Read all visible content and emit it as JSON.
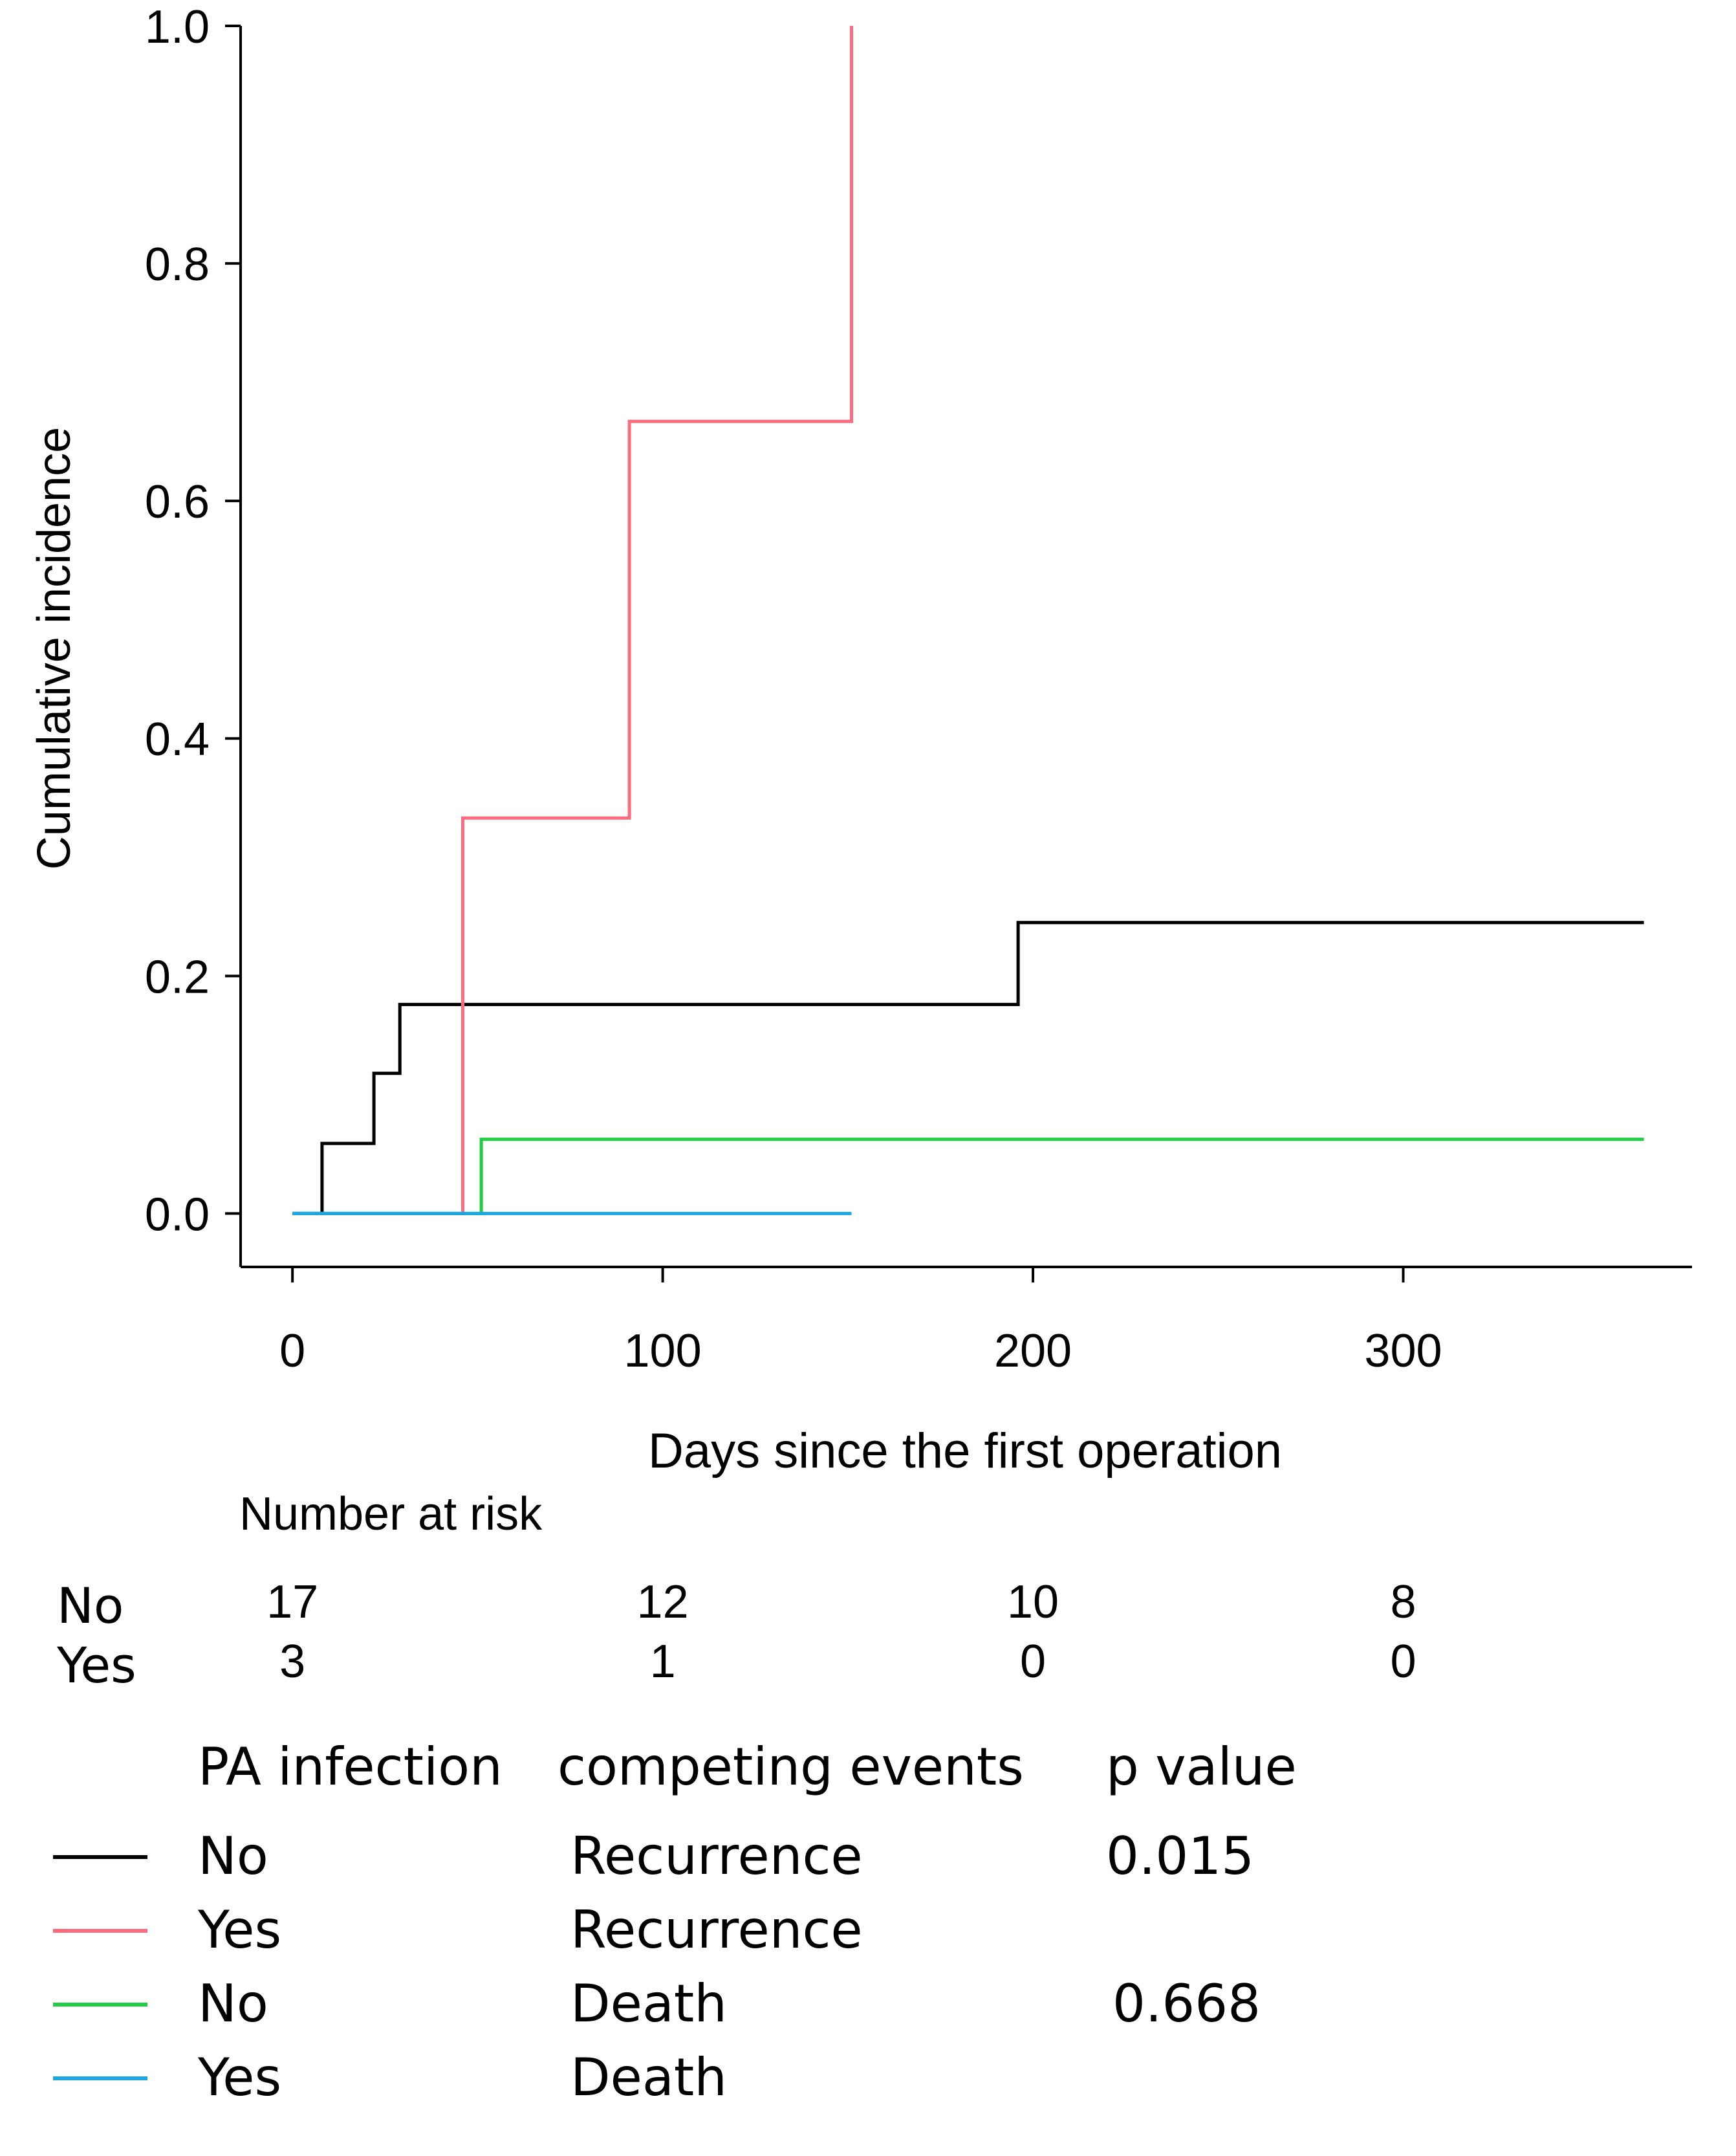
{
  "chart_data": {
    "type": "line",
    "step": true,
    "title": "",
    "xlabel": "Days since the first operation",
    "ylabel": "Cumulative incidence",
    "xlim": [
      -14,
      378
    ],
    "ylim": [
      -0.045,
      1.0
    ],
    "xticks": [
      0,
      100,
      200,
      300
    ],
    "xtick_labels": [
      "0",
      "100",
      "200",
      "300"
    ],
    "yticks": [
      0.0,
      0.2,
      0.4,
      0.6,
      0.8,
      1.0
    ],
    "ytick_labels": [
      "0.0",
      "0.2",
      "0.4",
      "0.6",
      "0.8",
      "1.0"
    ],
    "grid": false,
    "series": [
      {
        "name": "No - Recurrence",
        "color": "#000000",
        "x": [
          0,
          8,
          8,
          22,
          22,
          29,
          29,
          196,
          196,
          365
        ],
        "y": [
          0,
          0,
          0.059,
          0.059,
          0.118,
          0.118,
          0.176,
          0.176,
          0.245,
          0.245
        ]
      },
      {
        "name": "Yes - Recurrence",
        "color": "#ff6b81",
        "x": [
          0,
          46,
          46,
          91,
          91,
          151,
          151
        ],
        "y": [
          0,
          0,
          0.333,
          0.333,
          0.667,
          0.667,
          1.0
        ]
      },
      {
        "name": "No - Death",
        "color": "#22cc44",
        "x": [
          0,
          51,
          51,
          365
        ],
        "y": [
          0,
          0,
          0.0625,
          0.0625
        ]
      },
      {
        "name": "Yes - Death",
        "color": "#1aa7e6",
        "x": [
          0,
          151
        ],
        "y": [
          0,
          0
        ]
      }
    ],
    "risk_table": {
      "title": "Number at risk",
      "rows": [
        {
          "label": "No",
          "values": [
            "17",
            "12",
            "10",
            "8"
          ]
        },
        {
          "label": "Yes",
          "values": [
            "3",
            "1",
            "0",
            "0"
          ]
        }
      ]
    },
    "legend": {
      "headers": {
        "group": "PA infection",
        "event": "competing events",
        "p": "p value"
      },
      "entries": [
        {
          "color": "#000000",
          "group": "No",
          "event": "Recurrence",
          "p": "0.015"
        },
        {
          "color": "#ff6b81",
          "group": "Yes",
          "event": "Recurrence",
          "p": ""
        },
        {
          "color": "#22cc44",
          "group": "No",
          "event": "Death",
          "p": "0.668"
        },
        {
          "color": "#1aa7e6",
          "group": "Yes",
          "event": "Death",
          "p": ""
        }
      ]
    }
  }
}
